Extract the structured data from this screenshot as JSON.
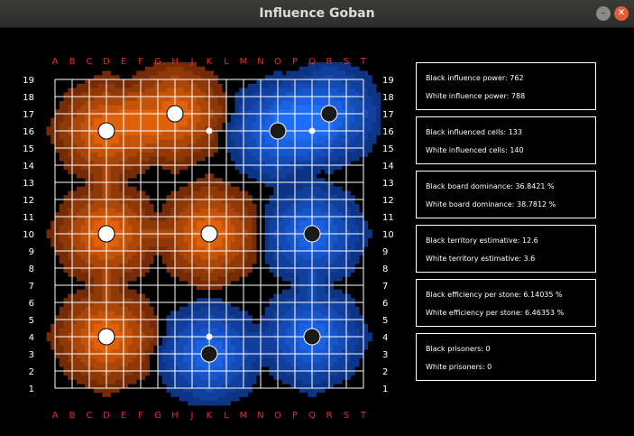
{
  "window": {
    "title": "Influence Goban"
  },
  "board": {
    "columns": [
      "A",
      "B",
      "C",
      "D",
      "E",
      "F",
      "G",
      "H",
      "J",
      "K",
      "L",
      "M",
      "N",
      "O",
      "P",
      "Q",
      "R",
      "S",
      "T"
    ],
    "rows": [
      "19",
      "18",
      "17",
      "16",
      "15",
      "14",
      "13",
      "12",
      "11",
      "10",
      "9",
      "8",
      "7",
      "6",
      "5",
      "4",
      "3",
      "2",
      "1"
    ],
    "colors": {
      "coord": "#e03030",
      "black_influence": "#1e64e6",
      "white_influence": "#e6640a",
      "grid": "#ffffff"
    },
    "stones": [
      {
        "color": "white",
        "point": "D16"
      },
      {
        "color": "white",
        "point": "H17"
      },
      {
        "color": "white",
        "point": "D10"
      },
      {
        "color": "white",
        "point": "K10"
      },
      {
        "color": "white",
        "point": "D4"
      },
      {
        "color": "black",
        "point": "O16"
      },
      {
        "color": "black",
        "point": "R17"
      },
      {
        "color": "black",
        "point": "Q10"
      },
      {
        "color": "black",
        "point": "Q4"
      },
      {
        "color": "black",
        "point": "K3"
      }
    ],
    "markers": [
      "K16",
      "Q16",
      "K4"
    ]
  },
  "stats": {
    "influence_power": {
      "black": "Black influence power: 762",
      "white": "White influence power: 788"
    },
    "influenced_cells": {
      "black": "Black influenced cells: 133",
      "white": "White influenced cells: 140"
    },
    "board_dominance": {
      "black": "Black board dominance: 36.8421 %",
      "white": "White board dominance: 38.7812 %"
    },
    "territory": {
      "black": "Black territory estimative: 12.6",
      "white": "White territory estimative: 3.6"
    },
    "efficiency": {
      "black": "Black efficiency per stone: 6.14035 %",
      "white": "White efficiency per stone: 6.46353 %"
    },
    "prisoners": {
      "black": "Black prisoners: 0",
      "white": "White prisoners: 0"
    }
  }
}
